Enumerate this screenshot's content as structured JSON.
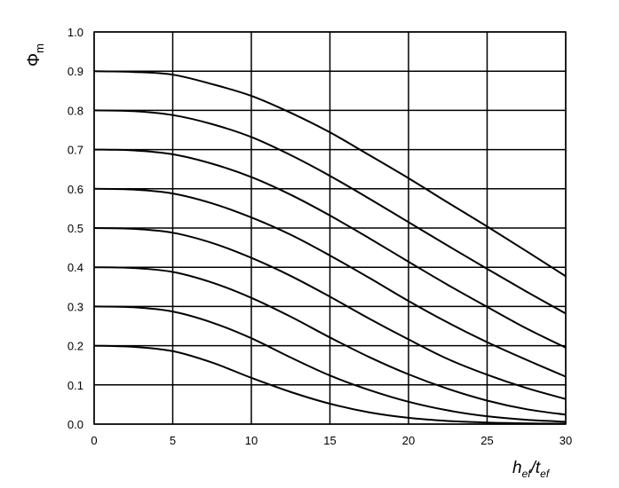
{
  "chart_data": {
    "type": "line",
    "title": "",
    "xlabel": {
      "main": "h",
      "main_sub": "ef",
      "sep": "/",
      "second": "t",
      "second_sub": "ef"
    },
    "ylabel": {
      "main": "Φ",
      "sub": "m"
    },
    "xlim": [
      0,
      30
    ],
    "ylim": [
      0,
      1.0
    ],
    "xticks": [
      0,
      5,
      10,
      15,
      20,
      25,
      30
    ],
    "xtick_labels": [
      "0",
      "5",
      "10",
      "15",
      "20",
      "25",
      "30"
    ],
    "yticks": [
      0.0,
      0.1,
      0.2,
      0.3,
      0.4,
      0.5,
      0.6,
      0.7,
      0.8,
      0.9,
      1.0
    ],
    "ytick_labels": [
      "0.0",
      "0.1",
      "0.2",
      "0.3",
      "0.4",
      "0.5",
      "0.6",
      "0.7",
      "0.8",
      "0.9",
      "1.0"
    ],
    "grid": true,
    "legend": "none",
    "x": [
      0,
      2.5,
      5,
      7.5,
      10,
      12.5,
      15,
      17.5,
      20,
      22.5,
      25,
      27.5,
      30
    ],
    "series": [
      {
        "values": [
          0.9,
          0.898,
          0.891,
          0.867,
          0.837,
          0.794,
          0.744,
          0.686,
          0.627,
          0.565,
          0.504,
          0.441,
          0.377
        ]
      },
      {
        "values": [
          0.8,
          0.798,
          0.788,
          0.765,
          0.732,
          0.686,
          0.633,
          0.575,
          0.515,
          0.455,
          0.396,
          0.338,
          0.282
        ]
      },
      {
        "values": [
          0.7,
          0.698,
          0.688,
          0.664,
          0.63,
          0.585,
          0.532,
          0.474,
          0.414,
          0.355,
          0.299,
          0.244,
          0.195
        ]
      },
      {
        "values": [
          0.6,
          0.598,
          0.588,
          0.563,
          0.527,
          0.483,
          0.43,
          0.373,
          0.314,
          0.259,
          0.209,
          0.164,
          0.121
        ]
      },
      {
        "values": [
          0.5,
          0.498,
          0.488,
          0.462,
          0.424,
          0.378,
          0.325,
          0.269,
          0.216,
          0.166,
          0.126,
          0.092,
          0.064
        ]
      },
      {
        "values": [
          0.4,
          0.398,
          0.388,
          0.361,
          0.322,
          0.274,
          0.221,
          0.171,
          0.127,
          0.09,
          0.06,
          0.038,
          0.024
        ]
      },
      {
        "values": [
          0.3,
          0.298,
          0.287,
          0.259,
          0.219,
          0.17,
          0.124,
          0.087,
          0.057,
          0.035,
          0.02,
          0.011,
          0.006
        ]
      },
      {
        "values": [
          0.2,
          0.197,
          0.186,
          0.157,
          0.118,
          0.082,
          0.052,
          0.03,
          0.016,
          0.008,
          0.004,
          0.002,
          0.001
        ]
      }
    ],
    "colors": {
      "line": "#000000",
      "grid": "#000000",
      "background": "#ffffff"
    }
  }
}
